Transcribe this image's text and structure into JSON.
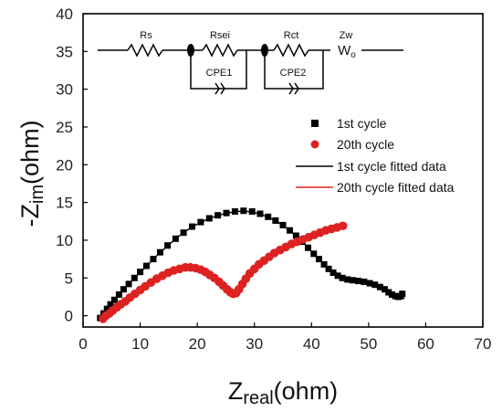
{
  "chart_data": {
    "type": "scatter",
    "title": "",
    "xlabel_main": "Z",
    "xlabel_sub": "real",
    "xlabel_unit": "(ohm)",
    "ylabel_main": "-Z",
    "ylabel_sub": "im",
    "ylabel_unit": "(ohm)",
    "xlim": [
      0,
      70
    ],
    "ylim": [
      -1.5,
      40
    ],
    "xticks": [
      0,
      10,
      20,
      30,
      40,
      50,
      60,
      70
    ],
    "yticks": [
      0,
      5,
      10,
      15,
      20,
      25,
      30,
      35,
      40
    ],
    "legend_position": "right",
    "series": [
      {
        "name": "1st cycle",
        "marker": "square",
        "color": "#000000",
        "x": [
          3.0,
          3.6,
          4.2,
          4.8,
          5.5,
          6.3,
          7.1,
          8.0,
          9.0,
          10.0,
          11.1,
          12.3,
          13.5,
          14.8,
          16.2,
          17.6,
          19.1,
          20.6,
          22.1,
          23.6,
          25.1,
          26.6,
          28.1,
          29.6,
          31.0,
          32.4,
          33.7,
          35.0,
          36.2,
          37.3,
          38.4,
          39.4,
          40.4,
          41.3,
          42.2,
          43.0,
          43.8,
          44.6,
          45.4,
          46.3,
          47.2,
          48.2,
          49.2,
          50.2,
          51.1,
          52.0,
          52.8,
          53.5,
          54.1,
          54.7,
          55.2,
          55.6,
          55.9
        ],
        "y": [
          -0.3,
          0.3,
          0.9,
          1.5,
          2.1,
          2.8,
          3.5,
          4.2,
          5.0,
          5.8,
          6.6,
          7.5,
          8.4,
          9.3,
          10.2,
          11.0,
          11.8,
          12.4,
          12.9,
          13.3,
          13.6,
          13.8,
          13.9,
          13.8,
          13.5,
          13.1,
          12.6,
          12.0,
          11.3,
          10.6,
          9.8,
          9.0,
          8.2,
          7.5,
          6.8,
          6.2,
          5.7,
          5.3,
          5.0,
          4.8,
          4.7,
          4.6,
          4.5,
          4.3,
          4.1,
          3.8,
          3.5,
          3.1,
          2.8,
          2.6,
          2.5,
          2.6,
          2.9
        ]
      },
      {
        "name": "20th cycle",
        "marker": "circle",
        "color": "#dd2222",
        "x": [
          3.5,
          4.0,
          4.6,
          5.2,
          5.9,
          6.6,
          7.4,
          8.2,
          9.1,
          10.0,
          10.9,
          11.9,
          12.9,
          13.9,
          14.9,
          15.9,
          16.9,
          17.9,
          18.8,
          19.7,
          20.6,
          21.4,
          22.2,
          23.0,
          23.8,
          24.5,
          25.2,
          25.8,
          26.3,
          26.8,
          27.3,
          27.9,
          28.5,
          29.2,
          30.0,
          30.8,
          31.7,
          32.6,
          33.5,
          34.5,
          35.5,
          36.5,
          37.5,
          38.5,
          39.5,
          40.5,
          41.5,
          42.5,
          43.5,
          44.5,
          45.5
        ],
        "y": [
          -0.4,
          0.0,
          0.3,
          0.7,
          1.1,
          1.5,
          1.9,
          2.4,
          2.9,
          3.4,
          3.9,
          4.4,
          4.9,
          5.3,
          5.7,
          6.0,
          6.2,
          6.4,
          6.4,
          6.3,
          6.1,
          5.8,
          5.4,
          5.0,
          4.5,
          4.0,
          3.5,
          3.1,
          2.9,
          3.0,
          3.5,
          4.2,
          4.9,
          5.6,
          6.2,
          6.8,
          7.3,
          7.8,
          8.3,
          8.7,
          9.1,
          9.5,
          9.8,
          10.1,
          10.4,
          10.7,
          11.0,
          11.3,
          11.5,
          11.7,
          11.9
        ]
      },
      {
        "name": "1st cycle fitted data",
        "type": "line",
        "color": "#000000",
        "x": [
          3.0,
          4.2,
          5.5,
          7.1,
          9.0,
          11.1,
          13.5,
          16.2,
          19.1,
          22.1,
          25.1,
          28.1,
          31.0,
          33.7,
          36.2,
          38.4,
          40.4,
          42.2,
          43.8,
          45.4,
          47.2,
          49.2,
          51.1,
          52.8,
          54.1,
          55.2,
          56.3
        ],
        "y": [
          -0.3,
          0.9,
          2.1,
          3.5,
          5.0,
          6.6,
          8.4,
          10.2,
          11.8,
          12.9,
          13.6,
          13.9,
          13.5,
          12.6,
          11.3,
          9.8,
          8.2,
          6.8,
          5.7,
          5.0,
          4.7,
          4.5,
          4.1,
          3.5,
          2.8,
          2.5,
          2.3
        ]
      },
      {
        "name": "20th cycle fitted data",
        "type": "line",
        "color": "#dd2222",
        "x": [
          3.5,
          4.6,
          5.9,
          7.4,
          9.1,
          10.9,
          12.9,
          14.9,
          16.9,
          18.8,
          20.6,
          22.2,
          23.8,
          25.2,
          26.3,
          27.3,
          28.5,
          30.0,
          31.7,
          33.5,
          35.5,
          37.5,
          39.5,
          41.5,
          43.5,
          45.5
        ],
        "y": [
          -0.4,
          0.3,
          1.1,
          1.9,
          2.9,
          3.9,
          4.9,
          5.7,
          6.2,
          6.4,
          6.1,
          5.4,
          4.5,
          3.5,
          2.9,
          3.5,
          4.9,
          6.2,
          7.3,
          8.3,
          9.1,
          9.8,
          10.4,
          11.0,
          11.5,
          11.9
        ]
      }
    ],
    "inset_circuit": {
      "labels": [
        "Rs",
        "Rsei",
        "Rct",
        "Zw",
        "CPE1",
        "CPE2",
        "W"
      ],
      "wo_sub": "o"
    }
  }
}
